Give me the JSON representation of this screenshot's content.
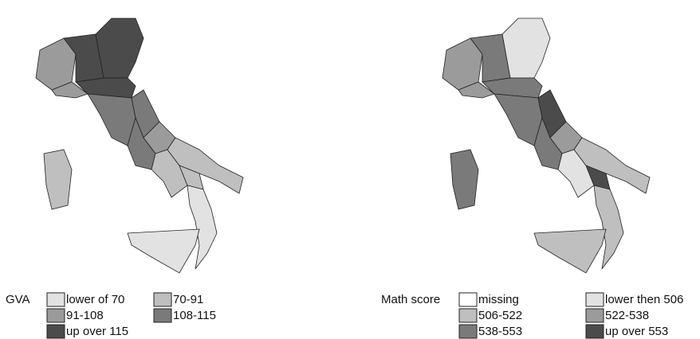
{
  "maps": [
    {
      "legend_title": "GVA",
      "classes": [
        {
          "label": "lower of 70",
          "color": "#e2e2e2"
        },
        {
          "label": "70-91",
          "color": "#bfbfbf"
        },
        {
          "label": "91-108",
          "color": "#9b9b9b"
        },
        {
          "label": "108-115",
          "color": "#7a7a7a"
        },
        {
          "label": "up over 115",
          "color": "#4b4b4b"
        }
      ]
    },
    {
      "legend_title": "Math score",
      "classes": [
        {
          "label": "missing",
          "color": "#ffffff"
        },
        {
          "label": "lower then 506",
          "color": "#e2e2e2"
        },
        {
          "label": "506-522",
          "color": "#bfbfbf"
        },
        {
          "label": "522-538",
          "color": "#9b9b9b"
        },
        {
          "label": "538-553",
          "color": "#7a7a7a"
        },
        {
          "label": "up over 553",
          "color": "#4b4b4b"
        }
      ]
    }
  ]
}
